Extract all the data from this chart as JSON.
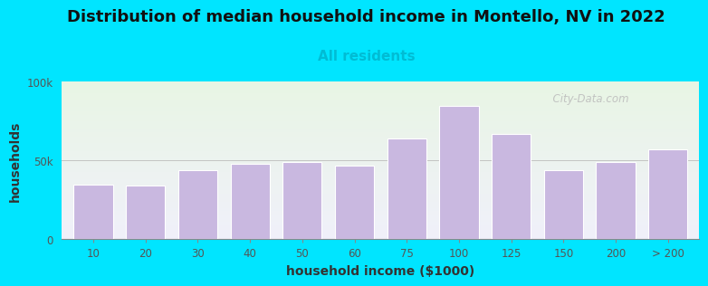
{
  "title": "Distribution of median household income in Montello, NV in 2022",
  "subtitle": "All residents",
  "xlabel": "household income ($1000)",
  "ylabel": "households",
  "bar_labels": [
    "10",
    "20",
    "30",
    "40",
    "50",
    "60",
    "75",
    "100",
    "125",
    "150",
    "200",
    "> 200"
  ],
  "bar_positions": [
    1,
    2,
    3,
    4,
    5,
    6,
    7,
    8,
    9,
    10,
    11,
    12
  ],
  "bar_values": [
    35000,
    34000,
    44000,
    48000,
    49000,
    47000,
    64000,
    85000,
    67000,
    44000,
    49000,
    57000
  ],
  "bar_color": "#c9b8e0",
  "bar_edgecolor": "#ffffff",
  "background_color": "#00e5ff",
  "plot_bg_gradient_top": "#e8f5e4",
  "plot_bg_gradient_bottom": "#f0f0fa",
  "ylim": [
    0,
    100000
  ],
  "ytick_labels": [
    "0",
    "50k",
    "100k"
  ],
  "ytick_values": [
    0,
    50000,
    100000
  ],
  "title_fontsize": 13,
  "subtitle_fontsize": 11,
  "subtitle_color": "#00bcd4",
  "axis_label_fontsize": 10,
  "tick_fontsize": 8.5,
  "watermark_text": "  City-Data.com",
  "watermark_color": "#bbbbbb"
}
